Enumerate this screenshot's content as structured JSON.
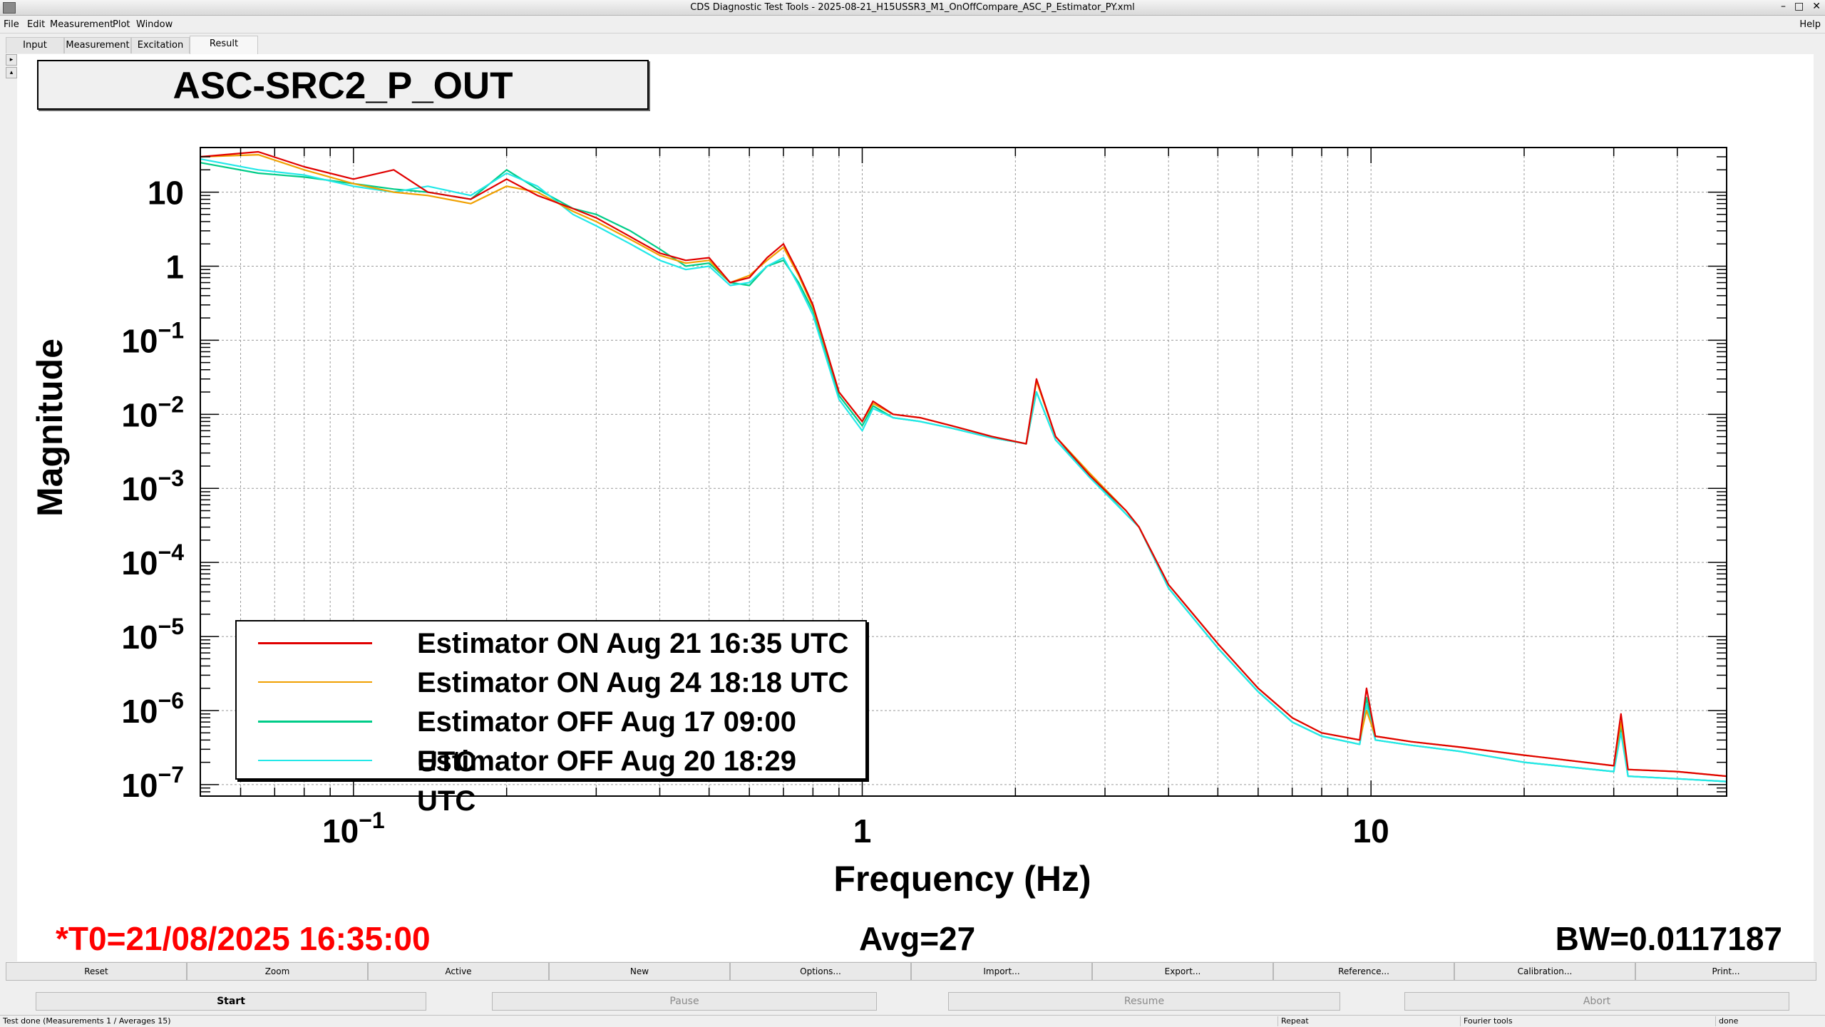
{
  "window": {
    "title": "CDS Diagnostic Test Tools - 2025-08-21_H15USSR3_M1_OnOffCompare_ASC_P_Estimator_PY.xml",
    "controls": [
      "–",
      "□",
      "✕"
    ]
  },
  "menu": {
    "file": "File",
    "edit": "Edit",
    "measurement": "Measurement",
    "plot": "Plot",
    "window": "Window",
    "help": "Help"
  },
  "tabs": {
    "input": "Input",
    "measurement": "Measurement",
    "excitation": "Excitation",
    "result": "Result"
  },
  "plot": {
    "channel_title": "ASC-SRC2_P_OUT",
    "ylabel": "Magnitude",
    "xlabel": "Frequency (Hz)",
    "yticks": [
      {
        "base": "10",
        "exp": ""
      },
      {
        "base": "1",
        "exp": ""
      },
      {
        "base": "10",
        "exp": "−1"
      },
      {
        "base": "10",
        "exp": "−2"
      },
      {
        "base": "10",
        "exp": "−3"
      },
      {
        "base": "10",
        "exp": "−4"
      },
      {
        "base": "10",
        "exp": "−5"
      },
      {
        "base": "10",
        "exp": "−6"
      },
      {
        "base": "10",
        "exp": "−7"
      }
    ],
    "xticks": [
      {
        "base": "10",
        "exp": "−1"
      },
      {
        "base": "1",
        "exp": ""
      },
      {
        "base": "10",
        "exp": ""
      }
    ],
    "t0": "*T0=21/08/2025 16:35:00",
    "avg": "Avg=27",
    "bw": "BW=0.0117187"
  },
  "legend": [
    {
      "label": "Estimator ON Aug 21 16:35 UTC",
      "color": "#e00000"
    },
    {
      "label": "Estimator ON Aug 24 18:18 UTC",
      "color": "#f0a000"
    },
    {
      "label": "Estimator OFF Aug 17 09:00 UTC",
      "color": "#00cc88"
    },
    {
      "label": "Estimator OFF Aug 20 18:29 UTC",
      "color": "#22e8e8"
    }
  ],
  "chart_data": {
    "type": "line",
    "xlabel": "Frequency (Hz)",
    "ylabel": "Magnitude",
    "xscale": "log",
    "yscale": "log",
    "xlim": [
      0.05,
      50
    ],
    "ylim": [
      7e-08,
      40
    ],
    "grid": true,
    "legend_position": "bottom-left",
    "series": [
      {
        "name": "Estimator ON Aug 21 16:35 UTC",
        "color": "#e00000",
        "x": [
          0.05,
          0.065,
          0.08,
          0.1,
          0.12,
          0.14,
          0.17,
          0.2,
          0.23,
          0.27,
          0.3,
          0.35,
          0.4,
          0.45,
          0.5,
          0.55,
          0.6,
          0.65,
          0.7,
          0.75,
          0.8,
          0.9,
          1.0,
          1.05,
          1.15,
          1.3,
          1.5,
          1.8,
          2.1,
          2.2,
          2.4,
          2.8,
          3.3,
          3.5,
          4.0,
          5.0,
          6.0,
          7.0,
          8.0,
          9.5,
          9.8,
          10.2,
          12,
          15,
          20,
          30,
          31,
          32,
          40,
          50
        ],
        "y": [
          30,
          35,
          22,
          15,
          20,
          10,
          8,
          15,
          9,
          6,
          4.5,
          2.5,
          1.5,
          1.2,
          1.3,
          0.6,
          0.7,
          1.3,
          2.0,
          0.8,
          0.3,
          0.02,
          0.008,
          0.015,
          0.01,
          0.009,
          0.007,
          0.005,
          0.004,
          0.03,
          0.005,
          0.0015,
          0.0005,
          0.0003,
          5e-05,
          8e-06,
          2e-06,
          8e-07,
          5e-07,
          4e-07,
          2e-06,
          4.5e-07,
          3.8e-07,
          3.2e-07,
          2.5e-07,
          1.8e-07,
          9e-07,
          1.6e-07,
          1.5e-07,
          1.3e-07
        ]
      },
      {
        "name": "Estimator ON Aug 24 18:18 UTC",
        "color": "#f0a000",
        "x": [
          0.05,
          0.065,
          0.08,
          0.1,
          0.12,
          0.14,
          0.17,
          0.2,
          0.23,
          0.27,
          0.3,
          0.35,
          0.4,
          0.45,
          0.5,
          0.55,
          0.6,
          0.65,
          0.7,
          0.75,
          0.8,
          0.9,
          1.0,
          1.05,
          1.15,
          1.3,
          1.5,
          1.8,
          2.1,
          2.2,
          2.4,
          2.8,
          3.3,
          3.5,
          4.0,
          5.0,
          6.0,
          7.0,
          8.0,
          9.5,
          9.8,
          10.2,
          12,
          15,
          20,
          30,
          31,
          32,
          40,
          50
        ],
        "y": [
          30,
          32,
          20,
          13,
          10,
          9,
          7,
          12,
          10,
          5.5,
          4,
          2.3,
          1.4,
          1.1,
          1.2,
          0.6,
          0.75,
          1.2,
          1.8,
          0.75,
          0.28,
          0.02,
          0.008,
          0.014,
          0.01,
          0.009,
          0.007,
          0.005,
          0.004,
          0.028,
          0.005,
          0.0016,
          0.0005,
          0.0003,
          5e-05,
          8e-06,
          2e-06,
          8e-07,
          5e-07,
          4e-07,
          1e-06,
          4.5e-07,
          3.8e-07,
          3.2e-07,
          2.5e-07,
          1.8e-07,
          7e-07,
          1.6e-07,
          1.5e-07,
          1.3e-07
        ]
      },
      {
        "name": "Estimator OFF Aug 17 09:00 UTC",
        "color": "#00cc88",
        "x": [
          0.05,
          0.065,
          0.08,
          0.1,
          0.12,
          0.14,
          0.17,
          0.2,
          0.23,
          0.27,
          0.3,
          0.35,
          0.4,
          0.45,
          0.5,
          0.55,
          0.6,
          0.65,
          0.7,
          0.75,
          0.8,
          0.9,
          1.0,
          1.05,
          1.15,
          1.3,
          1.5,
          1.8,
          2.1,
          2.2,
          2.4,
          2.8,
          3.3,
          3.5,
          4.0,
          5.0,
          6.0,
          7.0,
          8.0,
          9.5,
          9.8,
          10.2,
          12,
          15,
          20,
          30,
          31,
          32,
          40,
          50
        ],
        "y": [
          25,
          18,
          16,
          13,
          11,
          10,
          8,
          20,
          11,
          6,
          5,
          3,
          1.7,
          1.0,
          1.1,
          0.6,
          0.55,
          1.0,
          1.2,
          0.6,
          0.25,
          0.018,
          0.007,
          0.013,
          0.009,
          0.008,
          0.0065,
          0.0048,
          0.004,
          0.02,
          0.0045,
          0.0015,
          0.00045,
          0.0003,
          4.5e-05,
          7e-06,
          1.8e-06,
          7e-07,
          4.5e-07,
          3.5e-07,
          1.5e-06,
          4e-07,
          3.4e-07,
          2.8e-07,
          2e-07,
          1.5e-07,
          6e-07,
          1.3e-07,
          1.2e-07,
          1.1e-07
        ]
      },
      {
        "name": "Estimator OFF Aug 20 18:29 UTC",
        "color": "#22e8e8",
        "x": [
          0.05,
          0.065,
          0.08,
          0.1,
          0.12,
          0.14,
          0.17,
          0.2,
          0.23,
          0.27,
          0.3,
          0.35,
          0.4,
          0.45,
          0.5,
          0.55,
          0.6,
          0.65,
          0.7,
          0.75,
          0.8,
          0.9,
          1.0,
          1.05,
          1.15,
          1.3,
          1.5,
          1.8,
          2.1,
          2.2,
          2.4,
          2.8,
          3.3,
          3.5,
          4.0,
          5.0,
          6.0,
          7.0,
          8.0,
          9.5,
          9.8,
          10.2,
          12,
          15,
          20,
          30,
          31,
          32,
          40,
          50
        ],
        "y": [
          28,
          20,
          17,
          12,
          10,
          12,
          9,
          18,
          12,
          5,
          3.5,
          2,
          1.2,
          0.9,
          1.0,
          0.55,
          0.6,
          1.0,
          1.3,
          0.55,
          0.22,
          0.016,
          0.006,
          0.012,
          0.009,
          0.008,
          0.0065,
          0.0048,
          0.004,
          0.02,
          0.0045,
          0.0014,
          0.00045,
          0.0003,
          4.5e-05,
          7e-06,
          1.8e-06,
          7e-07,
          4.5e-07,
          3.5e-07,
          1.2e-06,
          4e-07,
          3.4e-07,
          2.8e-07,
          2e-07,
          1.5e-07,
          5e-07,
          1.3e-07,
          1.2e-07,
          1.1e-07
        ]
      }
    ]
  },
  "buttons": [
    "Reset",
    "Zoom",
    "Active",
    "New",
    "Options...",
    "Import...",
    "Export...",
    "Reference...",
    "Calibration...",
    "Print..."
  ],
  "controls": {
    "start": "Start",
    "pause": "Pause",
    "resume": "Resume",
    "abort": "Abort"
  },
  "status": {
    "main": "Test done (Measurements 1 / Averages 15)",
    "repeat": "Repeat",
    "tools": "Fourier tools",
    "state": "done"
  }
}
